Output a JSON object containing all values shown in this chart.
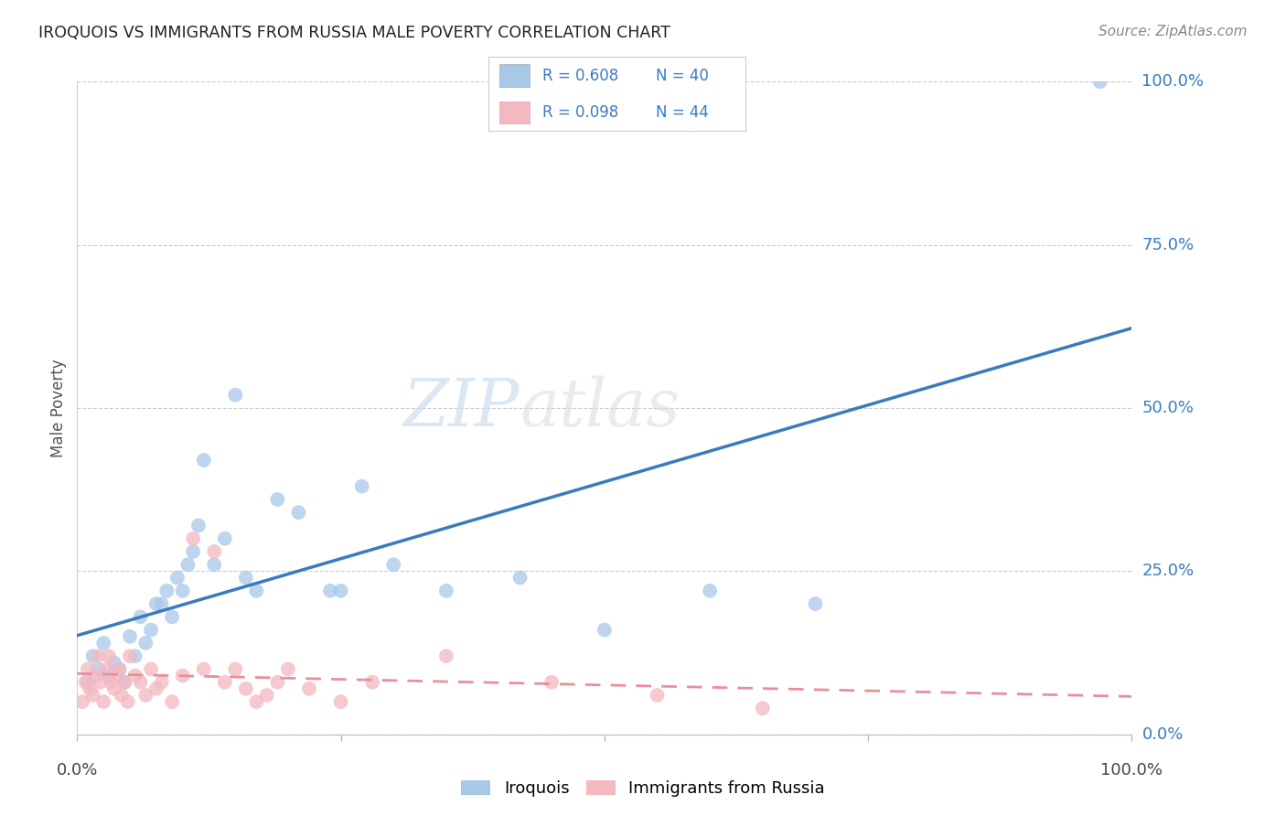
{
  "title": "IROQUOIS VS IMMIGRANTS FROM RUSSIA MALE POVERTY CORRELATION CHART",
  "source": "Source: ZipAtlas.com",
  "ylabel": "Male Poverty",
  "ytick_labels": [
    "0.0%",
    "25.0%",
    "50.0%",
    "75.0%",
    "100.0%"
  ],
  "ytick_values": [
    0,
    25,
    50,
    75,
    100
  ],
  "xlim": [
    0,
    100
  ],
  "ylim": [
    0,
    100
  ],
  "legend_r1": "R = 0.608",
  "legend_n1": "N = 40",
  "legend_r2": "R = 0.098",
  "legend_n2": "N = 44",
  "watermark": "ZIPatlas",
  "blue_scatter_color": "#a8c8e8",
  "pink_scatter_color": "#f4b8c0",
  "blue_line_color": "#3a7bbf",
  "pink_line_color": "#e8909a",
  "label_color": "#3a7bbf",
  "iroquois_x": [
    1.0,
    1.5,
    2.0,
    2.5,
    3.0,
    3.5,
    4.0,
    4.5,
    5.0,
    5.5,
    6.0,
    6.5,
    7.0,
    7.5,
    8.0,
    8.5,
    9.0,
    9.5,
    10.0,
    10.5,
    11.0,
    11.5,
    12.0,
    13.0,
    14.0,
    15.0,
    16.0,
    17.0,
    19.0,
    21.0,
    24.0,
    25.0,
    27.0,
    30.0,
    35.0,
    42.0,
    50.0,
    60.0,
    70.0,
    97.0
  ],
  "iroquois_y": [
    8,
    12,
    10,
    14,
    9,
    11,
    10,
    8,
    15,
    12,
    18,
    14,
    16,
    20,
    20,
    22,
    18,
    24,
    22,
    26,
    28,
    32,
    42,
    26,
    30,
    52,
    24,
    22,
    36,
    34,
    22,
    22,
    38,
    26,
    22,
    24,
    16,
    22,
    20,
    100
  ],
  "russia_x": [
    0.5,
    0.8,
    1.0,
    1.2,
    1.5,
    1.8,
    2.0,
    2.2,
    2.5,
    2.8,
    3.0,
    3.2,
    3.5,
    3.8,
    4.0,
    4.2,
    4.5,
    4.8,
    5.0,
    5.5,
    6.0,
    6.5,
    7.0,
    7.5,
    8.0,
    9.0,
    10.0,
    11.0,
    12.0,
    13.0,
    14.0,
    15.0,
    16.0,
    17.0,
    18.0,
    19.0,
    20.0,
    22.0,
    25.0,
    28.0,
    35.0,
    45.0,
    55.0,
    65.0
  ],
  "russia_y": [
    5,
    8,
    10,
    7,
    6,
    9,
    12,
    8,
    5,
    10,
    12,
    8,
    7,
    9,
    10,
    6,
    8,
    5,
    12,
    9,
    8,
    6,
    10,
    7,
    8,
    5,
    9,
    30,
    10,
    28,
    8,
    10,
    7,
    5,
    6,
    8,
    10,
    7,
    5,
    8,
    12,
    8,
    6,
    4
  ]
}
